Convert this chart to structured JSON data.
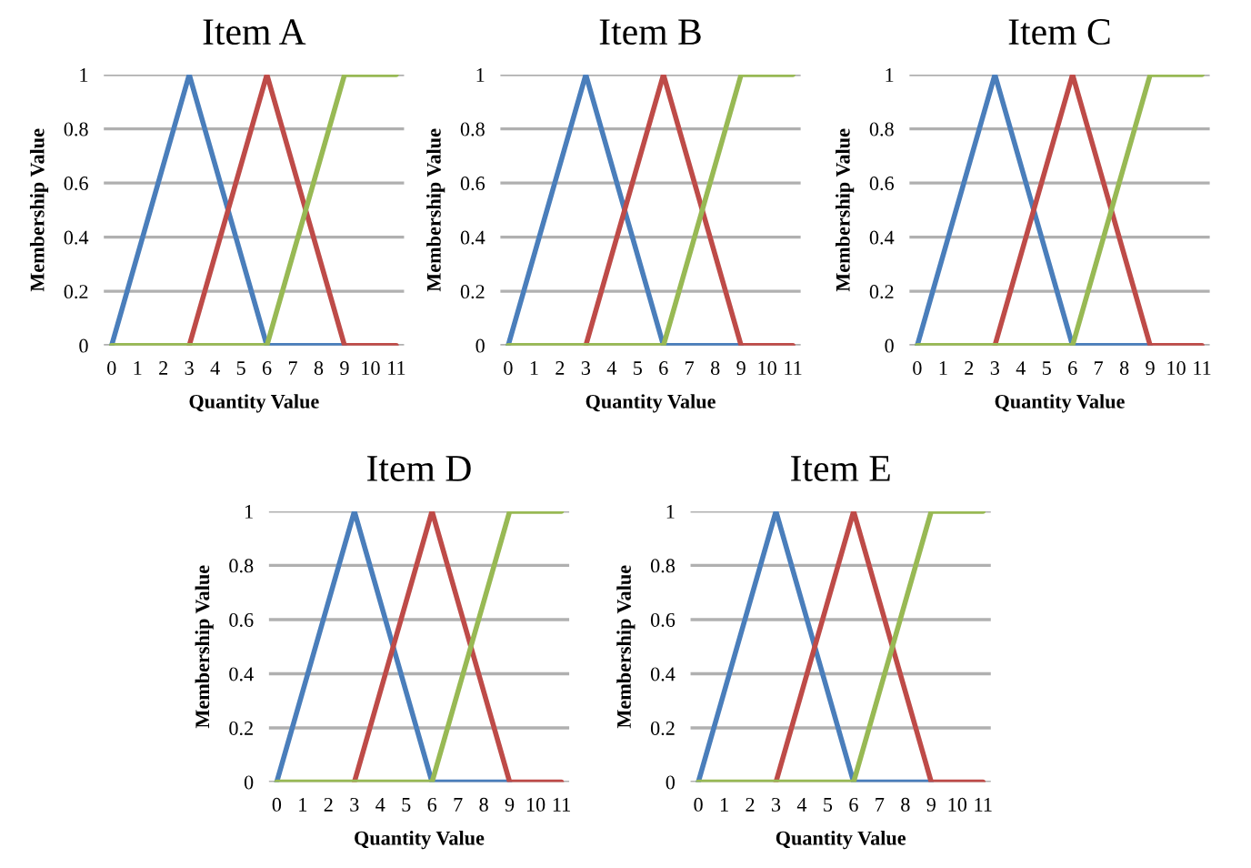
{
  "chart_data": [
    {
      "type": "line",
      "title": "Item A",
      "xlabel": "Quantity Value",
      "ylabel": "Membership Value",
      "xlim": [
        -0.3,
        11.3
      ],
      "xticks": [
        0,
        1,
        2,
        3,
        4,
        5,
        6,
        7,
        8,
        9,
        10,
        11
      ],
      "ylim": [
        0,
        1
      ],
      "yticks": [
        0,
        0.2,
        0.4,
        0.6,
        0.8,
        1
      ],
      "grid": "y",
      "legend": false,
      "marker": "none",
      "line_style": "solid",
      "series": [
        {
          "color": "#4a7ebb",
          "x": [
            0,
            3,
            6,
            9
          ],
          "values": [
            0,
            1,
            0,
            0
          ]
        },
        {
          "color": "#be4b48",
          "x": [
            3,
            6,
            9,
            11
          ],
          "values": [
            0,
            1,
            0,
            0
          ]
        },
        {
          "color": "#98b954",
          "x": [
            0,
            6,
            9,
            11
          ],
          "values": [
            0,
            0,
            1,
            1
          ]
        }
      ]
    },
    {
      "type": "line",
      "title": "Item B",
      "xlabel": "Quantity Value",
      "ylabel": "Membership Value",
      "xlim": [
        -0.3,
        11.3
      ],
      "xticks": [
        0,
        1,
        2,
        3,
        4,
        5,
        6,
        7,
        8,
        9,
        10,
        11
      ],
      "ylim": [
        0,
        1
      ],
      "yticks": [
        0,
        0.2,
        0.4,
        0.6,
        0.8,
        1
      ],
      "grid": "y",
      "legend": false,
      "marker": "none",
      "line_style": "solid",
      "series": [
        {
          "color": "#4a7ebb",
          "x": [
            0,
            3,
            6,
            9
          ],
          "values": [
            0,
            1,
            0,
            0
          ]
        },
        {
          "color": "#be4b48",
          "x": [
            3,
            6,
            9,
            11
          ],
          "values": [
            0,
            1,
            0,
            0
          ]
        },
        {
          "color": "#98b954",
          "x": [
            0,
            6,
            9,
            11
          ],
          "values": [
            0,
            0,
            1,
            1
          ]
        }
      ]
    },
    {
      "type": "line",
      "title": "Item C",
      "xlabel": "Quantity Value",
      "ylabel": "Membership Value",
      "xlim": [
        -0.3,
        11.3
      ],
      "xticks": [
        0,
        1,
        2,
        3,
        4,
        5,
        6,
        7,
        8,
        9,
        10,
        11
      ],
      "ylim": [
        0,
        1
      ],
      "yticks": [
        0,
        0.2,
        0.4,
        0.6,
        0.8,
        1
      ],
      "grid": "y",
      "legend": false,
      "marker": "none",
      "line_style": "solid",
      "series": [
        {
          "color": "#4a7ebb",
          "x": [
            0,
            3,
            6,
            9
          ],
          "values": [
            0,
            1,
            0,
            0
          ]
        },
        {
          "color": "#be4b48",
          "x": [
            3,
            6,
            9,
            11
          ],
          "values": [
            0,
            1,
            0,
            0
          ]
        },
        {
          "color": "#98b954",
          "x": [
            0,
            6,
            9,
            11
          ],
          "values": [
            0,
            0,
            1,
            1
          ]
        }
      ]
    },
    {
      "type": "line",
      "title": "Item D",
      "xlabel": "Quantity Value",
      "ylabel": "Membership Value",
      "xlim": [
        -0.3,
        11.3
      ],
      "xticks": [
        0,
        1,
        2,
        3,
        4,
        5,
        6,
        7,
        8,
        9,
        10,
        11
      ],
      "ylim": [
        0,
        1
      ],
      "yticks": [
        0,
        0.2,
        0.4,
        0.6,
        0.8,
        1
      ],
      "grid": "y",
      "legend": false,
      "marker": "none",
      "line_style": "solid",
      "series": [
        {
          "color": "#4a7ebb",
          "x": [
            0,
            3,
            6,
            9
          ],
          "values": [
            0,
            1,
            0,
            0
          ]
        },
        {
          "color": "#be4b48",
          "x": [
            3,
            6,
            9,
            11
          ],
          "values": [
            0,
            1,
            0,
            0
          ]
        },
        {
          "color": "#98b954",
          "x": [
            0,
            6,
            9,
            11
          ],
          "values": [
            0,
            0,
            1,
            1
          ]
        }
      ]
    },
    {
      "type": "line",
      "title": "Item E",
      "xlabel": "Quantity Value",
      "ylabel": "Membership Value",
      "xlim": [
        -0.3,
        11.3
      ],
      "xticks": [
        0,
        1,
        2,
        3,
        4,
        5,
        6,
        7,
        8,
        9,
        10,
        11
      ],
      "ylim": [
        0,
        1
      ],
      "yticks": [
        0,
        0.2,
        0.4,
        0.6,
        0.8,
        1
      ],
      "grid": "y",
      "legend": false,
      "marker": "none",
      "line_style": "solid",
      "series": [
        {
          "color": "#4a7ebb",
          "x": [
            0,
            3,
            6,
            9
          ],
          "values": [
            0,
            1,
            0,
            0
          ]
        },
        {
          "color": "#be4b48",
          "x": [
            3,
            6,
            9,
            11
          ],
          "values": [
            0,
            1,
            0,
            0
          ]
        },
        {
          "color": "#98b954",
          "x": [
            0,
            6,
            9,
            11
          ],
          "values": [
            0,
            0,
            1,
            1
          ]
        }
      ]
    }
  ]
}
